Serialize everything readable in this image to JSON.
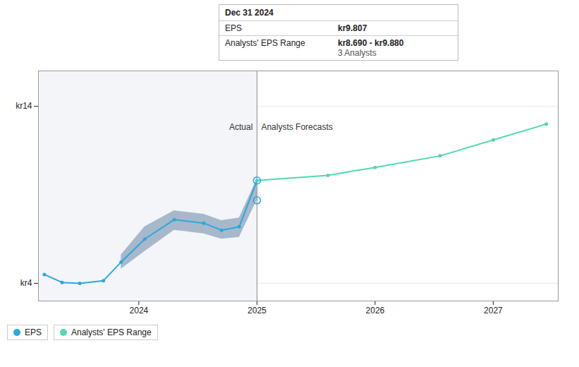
{
  "chart_data": {
    "type": "line",
    "xlim": [
      2023.15,
      2027.55
    ],
    "xticks": [
      2024,
      2025,
      2026,
      2027
    ],
    "ylim": [
      3.0,
      16.0
    ],
    "yticks": [
      {
        "value": 4.0,
        "label": "kr4"
      },
      {
        "value": 14.0,
        "label": "kr14"
      }
    ],
    "grid": true,
    "legend": "bottom left",
    "series": [
      {
        "name": "EPS",
        "type": "line",
        "color": "#2aa8e0",
        "marker": "circle",
        "x": [
          2023.2,
          2023.35,
          2023.5,
          2023.7,
          2023.85,
          2024.05,
          2024.3,
          2024.55,
          2024.7,
          2024.85,
          2025.0
        ],
        "values": [
          4.5,
          4.05,
          4.0,
          4.15,
          5.2,
          6.5,
          7.6,
          7.4,
          7.0,
          7.2,
          9.807
        ]
      },
      {
        "name": "Analysts' EPS Range",
        "type": "line",
        "color": "#4fd9b0",
        "marker": "circle",
        "x": [
          2025.0,
          2025.6,
          2026.0,
          2026.55,
          2027.0,
          2027.45
        ],
        "values": [
          9.807,
          10.1,
          10.55,
          11.2,
          12.1,
          13.0
        ]
      }
    ],
    "range": {
      "x": [
        2023.85,
        2024.05,
        2024.3,
        2024.55,
        2024.7,
        2024.85,
        2025.0
      ],
      "lower": [
        4.8,
        5.8,
        7.0,
        6.8,
        6.5,
        6.6,
        8.69
      ],
      "upper": [
        5.6,
        7.2,
        8.1,
        7.9,
        7.55,
        7.7,
        9.88
      ],
      "color": "#1a4878"
    },
    "highlight": {
      "x": [
        2025.0,
        2025.0
      ],
      "values": [
        9.807,
        8.69
      ],
      "color": "#2aa8e0"
    },
    "divider_x": 2025.0,
    "annotations": [
      {
        "text": "Actual",
        "x": 2025.0,
        "y": 13.0,
        "align": "right"
      },
      {
        "text": "Analysts Forecasts",
        "x": 2025.0,
        "y": 13.0,
        "align": "left"
      }
    ],
    "tooltip": {
      "title": "Dec 31 2024",
      "rows": [
        {
          "label": "EPS",
          "value": "kr9.807"
        },
        {
          "label": "Analysts' EPS Range",
          "value": "kr8.690 - kr9.880",
          "note": "3 Analysts"
        }
      ]
    }
  }
}
